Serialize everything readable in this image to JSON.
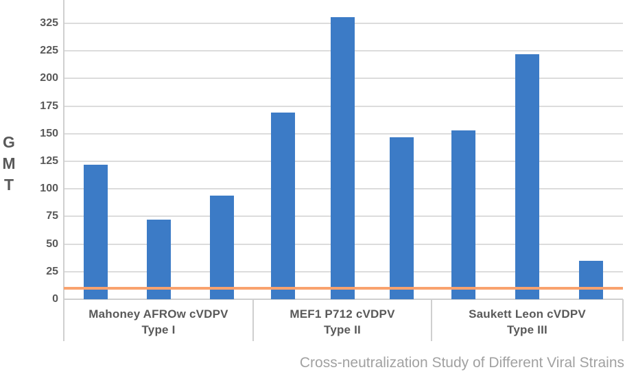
{
  "chart_data": {
    "type": "bar",
    "title": "Cross-neutralization Study of Different Viral Strains",
    "ylabel": "GMT",
    "y_ticks": [
      0,
      25,
      50,
      75,
      100,
      125,
      150,
      175,
      200,
      225,
      325
    ],
    "ylim_note": "ticks evenly spaced as labeled; top interval jumps from 225 to 325",
    "grid": true,
    "legend": false,
    "groups": [
      {
        "label": "Mahoney AFROw cVDPV",
        "sublabel": "Type I",
        "values": [
          122,
          72,
          94
        ]
      },
      {
        "label": "MEF1 P712 cVDPV",
        "sublabel": "Type II",
        "values": [
          169,
          348,
          147
        ]
      },
      {
        "label": "Saukett Leon cVDPV",
        "sublabel": "Type III",
        "values": [
          153,
          222,
          35
        ]
      }
    ],
    "threshold_line": {
      "value": 10
    }
  },
  "colors": {
    "bar": "#3C7BC6",
    "threshold": "#F9A26E",
    "grid": "#DCDCDC",
    "axis": "#CFCFCF",
    "label_text": "#595959",
    "title_text": "#A1A1A1"
  }
}
